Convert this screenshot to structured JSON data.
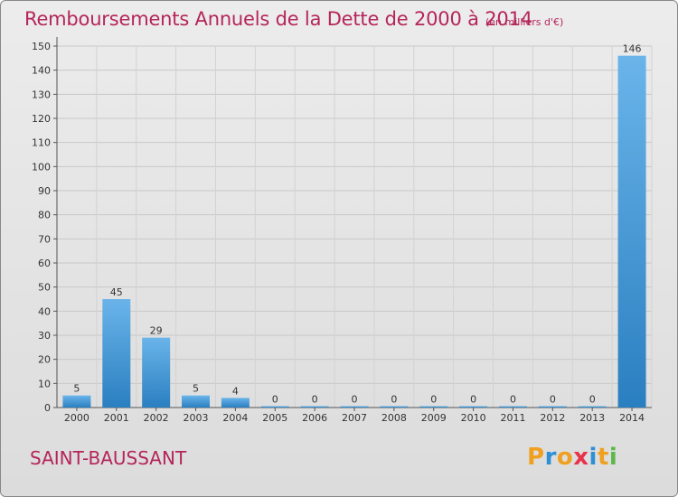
{
  "header": {
    "title": "Remboursements Annuels de la Dette de 2000 à 2014",
    "subtitle": "(en milliers d'€)"
  },
  "footer": {
    "commune": "SAINT-BAUSSANT",
    "logo": {
      "p": "P",
      "r": "r",
      "o": "o",
      "x": "x",
      "i1": "i",
      "t": "t",
      "i2": "i"
    }
  },
  "colors": {
    "title": "#b5255a",
    "bar_light": "#6ab4ea",
    "bar_dark": "#2a7fc0",
    "logo_p": "#f0a020",
    "logo_r": "#2d8fd6",
    "logo_o": "#f0a020",
    "logo_x": "#e8334a",
    "logo_i1": "#2d8fd6",
    "logo_t": "#f0a020",
    "logo_i2": "#5cb848"
  },
  "chart_data": {
    "type": "bar",
    "title": "Remboursements Annuels de la Dette de 2000 à 2014",
    "xlabel": "",
    "ylabel": "",
    "categories": [
      "2000",
      "2001",
      "2002",
      "2003",
      "2004",
      "2005",
      "2006",
      "2007",
      "2008",
      "2009",
      "2010",
      "2011",
      "2012",
      "2013",
      "2014"
    ],
    "values": [
      5,
      45,
      29,
      5,
      4,
      0,
      0,
      0,
      0,
      0,
      0,
      0,
      0,
      0,
      146
    ],
    "ylim": [
      0,
      150
    ],
    "yticks": [
      0,
      10,
      20,
      30,
      40,
      50,
      60,
      70,
      80,
      90,
      100,
      110,
      120,
      130,
      140,
      150
    ],
    "grid": true
  }
}
